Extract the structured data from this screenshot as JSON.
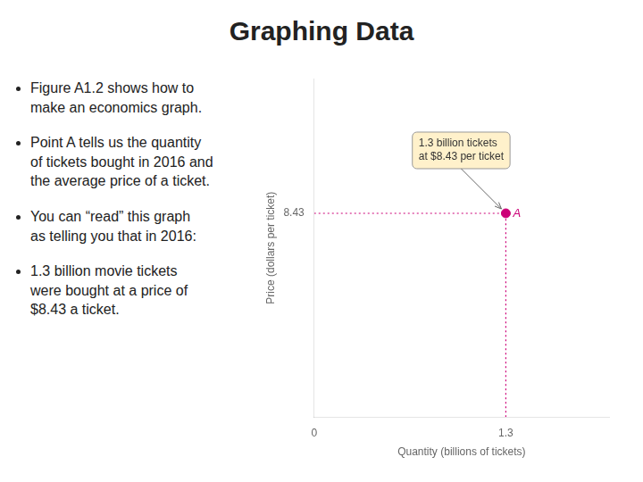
{
  "chart_data": {
    "type": "scatter",
    "title": "Graphing Data",
    "x_label": "Quantity (billions of tickets)",
    "y_label": "Price (dollars per ticket)",
    "x": [
      1.3
    ],
    "values": [
      8.43
    ],
    "color": "#cc0077",
    "marker": "circle",
    "xlim": [
      0,
      2.0
    ],
    "ylim": [
      0,
      14
    ],
    "xticks": [
      0,
      1.3
    ],
    "yticks": [
      8.43
    ],
    "grid": false,
    "annotations": [
      {
        "text": "A",
        "x": 1.3,
        "y": 8.43
      },
      {
        "text": "1.3 billion tickets\nat $8.43 per ticket",
        "x": 1.3,
        "y": 8.43
      }
    ],
    "bullets": [
      "Figure A1.2 shows how to\nmake an economics graph.",
      "Point A tells us the quantity\nof tickets bought in 2016 and\nthe average price of a ticket.",
      "You can “read” this graph\nas telling you that in 2016:",
      "1.3 billion movie tickets\nwere bought at a price of\n$8.43 a ticket."
    ]
  }
}
